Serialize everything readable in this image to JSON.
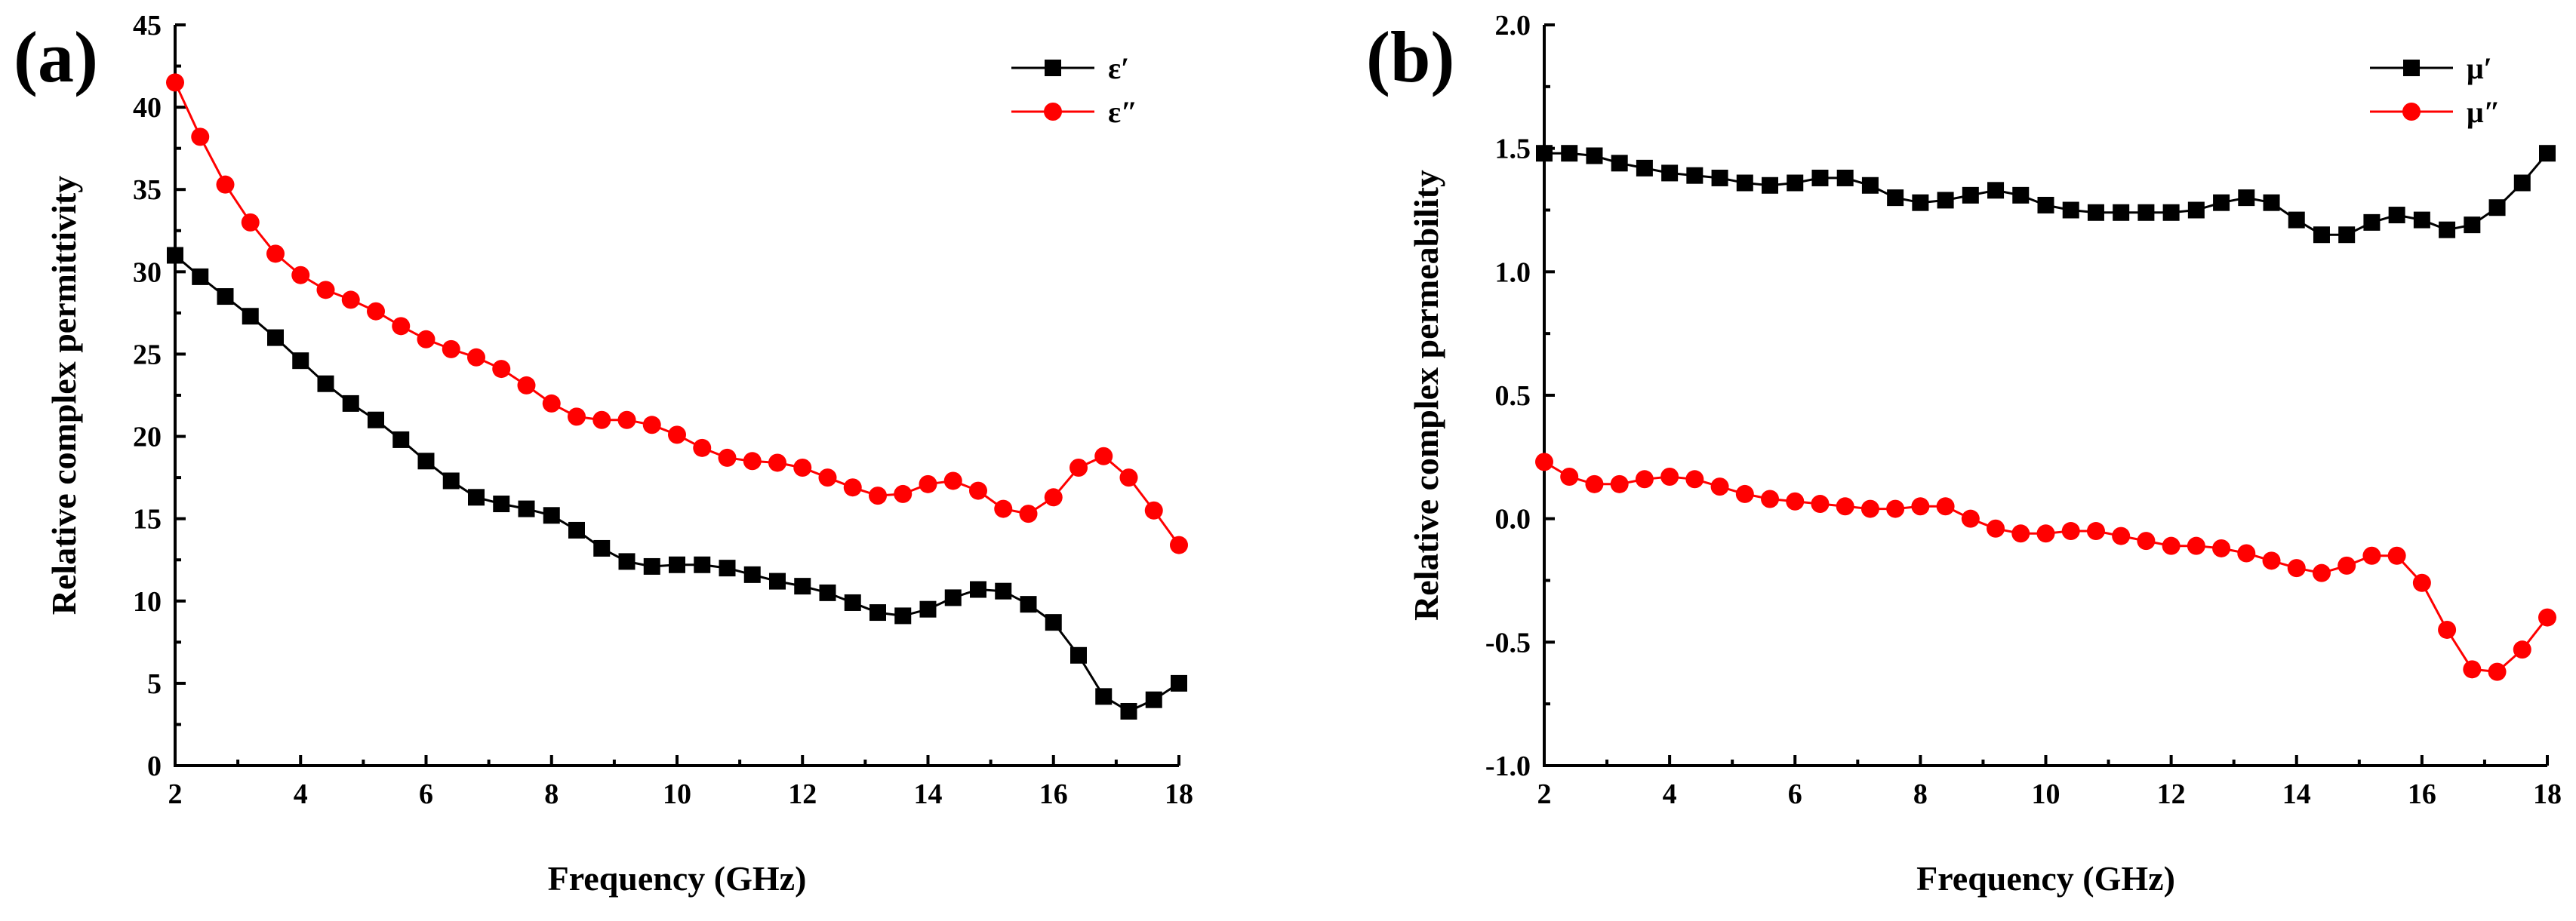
{
  "chart_data": [
    {
      "type": "line",
      "panel_label": "(a)",
      "xlabel": "Frequency (GHz)",
      "ylabel": "Relative complex permittivity",
      "xlim": [
        2,
        18
      ],
      "ylim": [
        0,
        45
      ],
      "xticks": [
        2,
        4,
        6,
        8,
        10,
        12,
        14,
        16,
        18
      ],
      "xtick_labels": [
        "2",
        "4",
        "6",
        "8",
        "10",
        "12",
        "14",
        "16",
        "18"
      ],
      "yticks": [
        0,
        5,
        10,
        15,
        20,
        25,
        30,
        35,
        40,
        45
      ],
      "ytick_labels": [
        "0",
        "5",
        "10",
        "15",
        "20",
        "25",
        "30",
        "35",
        "40",
        "45"
      ],
      "legend_position": "top-right",
      "x": [
        2.0,
        2.4,
        2.8,
        3.2,
        3.6,
        4.0,
        4.4,
        4.8,
        5.2,
        5.6,
        6.0,
        6.4,
        6.8,
        7.2,
        7.6,
        8.0,
        8.4,
        8.8,
        9.2,
        9.6,
        10.0,
        10.4,
        10.8,
        11.2,
        11.6,
        12.0,
        12.4,
        12.8,
        13.2,
        13.6,
        14.0,
        14.4,
        14.8,
        15.2,
        15.6,
        16.0,
        16.4,
        16.8,
        17.2,
        17.6,
        18.0
      ],
      "series": [
        {
          "name": "ε′",
          "color": "#000000",
          "marker": "square",
          "values": [
            31.0,
            29.7,
            28.5,
            27.3,
            26.0,
            24.6,
            23.2,
            22.0,
            21.0,
            19.8,
            18.5,
            17.3,
            16.3,
            15.9,
            15.6,
            15.2,
            14.3,
            13.2,
            12.4,
            12.1,
            12.2,
            12.2,
            12.0,
            11.6,
            11.2,
            10.9,
            10.5,
            9.9,
            9.3,
            9.1,
            9.5,
            10.2,
            10.7,
            10.6,
            9.8,
            8.7,
            6.7,
            4.2,
            3.3,
            4.0,
            5.0
          ]
        },
        {
          "name": "ε″",
          "color": "#ff0000",
          "marker": "circle",
          "values": [
            41.5,
            38.2,
            35.3,
            33.0,
            31.1,
            29.8,
            28.9,
            28.3,
            27.6,
            26.7,
            25.9,
            25.3,
            24.8,
            24.1,
            23.1,
            22.0,
            21.2,
            21.0,
            21.0,
            20.7,
            20.1,
            19.3,
            18.7,
            18.5,
            18.4,
            18.1,
            17.5,
            16.9,
            16.4,
            16.5,
            17.1,
            17.3,
            16.7,
            15.6,
            15.3,
            16.3,
            18.1,
            18.8,
            17.5,
            15.5,
            13.4
          ]
        }
      ]
    },
    {
      "type": "line",
      "panel_label": "(b)",
      "xlabel": "Frequency (GHz)",
      "ylabel": "Relative complex permeability",
      "xlim": [
        2,
        18
      ],
      "ylim": [
        -1.0,
        2.0
      ],
      "xticks": [
        2,
        4,
        6,
        8,
        10,
        12,
        14,
        16,
        18
      ],
      "xtick_labels": [
        "2",
        "4",
        "6",
        "8",
        "10",
        "12",
        "14",
        "16",
        "18"
      ],
      "yticks": [
        -1.0,
        -0.5,
        0.0,
        0.5,
        1.0,
        1.5,
        2.0
      ],
      "ytick_labels": [
        "-1.0",
        "-0.5",
        "0.0",
        "0.5",
        "1.0",
        "1.5",
        "2.0"
      ],
      "legend_position": "top-right",
      "x": [
        2.0,
        2.4,
        2.8,
        3.2,
        3.6,
        4.0,
        4.4,
        4.8,
        5.2,
        5.6,
        6.0,
        6.4,
        6.8,
        7.2,
        7.6,
        8.0,
        8.4,
        8.8,
        9.2,
        9.6,
        10.0,
        10.4,
        10.8,
        11.2,
        11.6,
        12.0,
        12.4,
        12.8,
        13.2,
        13.6,
        14.0,
        14.4,
        14.8,
        15.2,
        15.6,
        16.0,
        16.4,
        16.8,
        17.2,
        17.6,
        18.0
      ],
      "series": [
        {
          "name": "μ′",
          "color": "#000000",
          "marker": "square",
          "values": [
            1.48,
            1.48,
            1.47,
            1.44,
            1.42,
            1.4,
            1.39,
            1.38,
            1.36,
            1.35,
            1.36,
            1.38,
            1.38,
            1.35,
            1.3,
            1.28,
            1.29,
            1.31,
            1.33,
            1.31,
            1.27,
            1.25,
            1.24,
            1.24,
            1.24,
            1.24,
            1.25,
            1.28,
            1.3,
            1.28,
            1.21,
            1.15,
            1.15,
            1.2,
            1.23,
            1.21,
            1.17,
            1.19,
            1.26,
            1.36,
            1.48
          ]
        },
        {
          "name": "μ″",
          "color": "#ff0000",
          "marker": "circle",
          "values": [
            0.23,
            0.17,
            0.14,
            0.14,
            0.16,
            0.17,
            0.16,
            0.13,
            0.1,
            0.08,
            0.07,
            0.06,
            0.05,
            0.04,
            0.04,
            0.05,
            0.05,
            0.0,
            -0.04,
            -0.06,
            -0.06,
            -0.05,
            -0.05,
            -0.07,
            -0.09,
            -0.11,
            -0.11,
            -0.12,
            -0.14,
            -0.17,
            -0.2,
            -0.22,
            -0.19,
            -0.15,
            -0.15,
            -0.26,
            -0.45,
            -0.61,
            -0.62,
            -0.53,
            -0.4
          ]
        }
      ]
    }
  ]
}
